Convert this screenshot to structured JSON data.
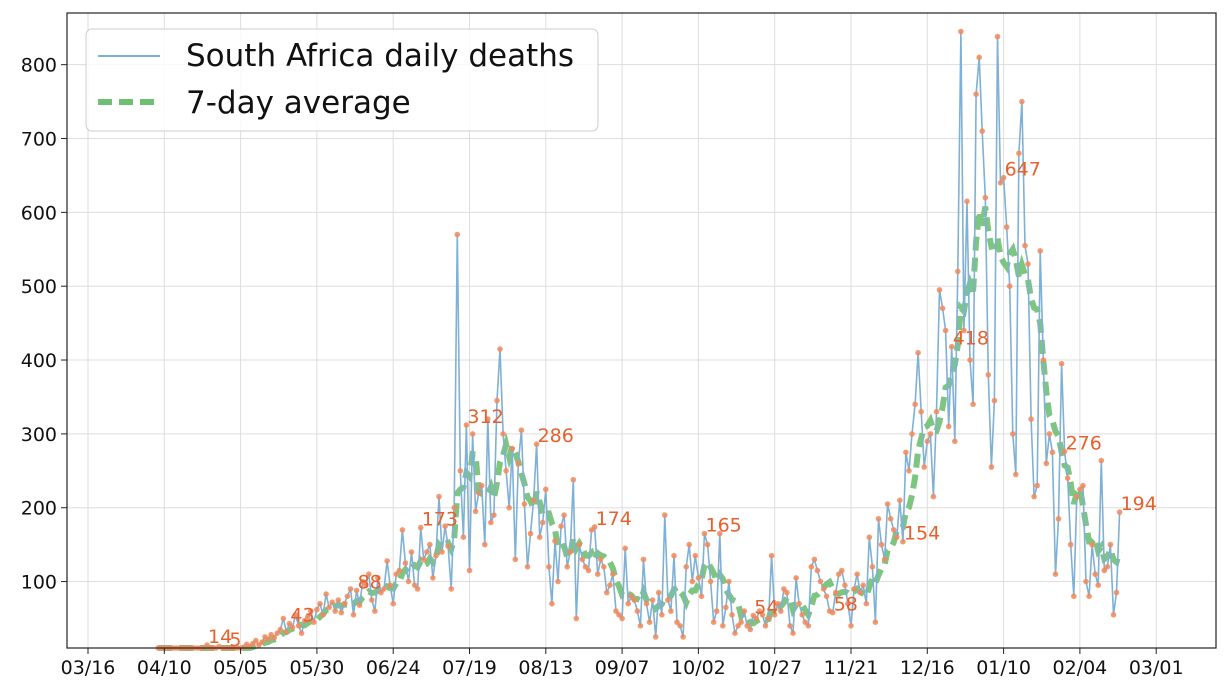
{
  "chart_data": {
    "type": "line",
    "title": "",
    "xlabel": "",
    "ylabel": "",
    "x_start": "03/16",
    "x_ticks": [
      "03/16",
      "04/10",
      "05/05",
      "05/30",
      "06/24",
      "07/19",
      "08/13",
      "09/07",
      "10/02",
      "10/27",
      "11/21",
      "12/16",
      "01/10",
      "02/04",
      "03/01"
    ],
    "y_ticks": [
      100,
      200,
      300,
      400,
      500,
      600,
      700,
      800
    ],
    "ylim": [
      10,
      870
    ],
    "grid": true,
    "legend_position": "top-left",
    "colors": {
      "daily_line": "#7fb0d5",
      "daily_marker": "#f08a5d",
      "average": "#6fbf73",
      "label": "#e8602c"
    },
    "series": [
      {
        "name": "South Africa daily deaths",
        "style": "line",
        "daily": [
          2,
          1,
          0,
          2,
          1,
          2,
          3,
          1,
          2,
          5,
          4,
          3,
          6,
          5,
          8,
          7,
          14,
          10,
          6,
          8,
          12,
          9,
          10,
          5,
          7,
          9,
          6,
          10,
          11,
          15,
          12,
          16,
          20,
          14,
          18,
          25,
          22,
          28,
          24,
          30,
          35,
          50,
          32,
          43,
          38,
          55,
          40,
          30,
          47,
          52,
          60,
          45,
          62,
          70,
          55,
          83,
          65,
          72,
          60,
          75,
          58,
          70,
          80,
          90,
          55,
          88,
          68,
          100,
          95,
          110,
          75,
          60,
          105,
          85,
          90,
          128,
          95,
          70,
          110,
          115,
          170,
          125,
          100,
          140,
          95,
          90,
          173,
          130,
          140,
          150,
          105,
          135,
          215,
          140,
          175,
          148,
          90,
          200,
          570,
          250,
          160,
          312,
          115,
          300,
          195,
          220,
          230,
          150,
          320,
          180,
          190,
          345,
          415,
          300,
          250,
          200,
          280,
          130,
          260,
          305,
          205,
          120,
          165,
          210,
          286,
          160,
          180,
          225,
          120,
          70,
          155,
          100,
          175,
          190,
          120,
          140,
          238,
          50,
          150,
          130,
          120,
          115,
          170,
          174,
          110,
          130,
          120,
          85,
          95,
          110,
          60,
          55,
          50,
          145,
          70,
          80,
          75,
          60,
          40,
          130,
          70,
          45,
          75,
          25,
          85,
          55,
          190,
          75,
          60,
          135,
          45,
          40,
          25,
          120,
          150,
          100,
          135,
          105,
          80,
          165,
          150,
          100,
          45,
          60,
          165,
          40,
          65,
          100,
          55,
          30,
          40,
          45,
          60,
          40,
          35,
          54,
          50,
          60,
          55,
          40,
          50,
          135,
          55,
          70,
          60,
          90,
          85,
          40,
          30,
          105,
          70,
          55,
          45,
          40,
          120,
          130,
          115,
          100,
          90,
          80,
          60,
          58,
          85,
          110,
          115,
          95,
          70,
          40,
          90,
          110,
          85,
          95,
          70,
          160,
          120,
          45,
          185,
          150,
          130,
          205,
          185,
          170,
          160,
          210,
          154,
          275,
          250,
          300,
          340,
          410,
          330,
          255,
          290,
          300,
          215,
          330,
          495,
          470,
          440,
          310,
          418,
          290,
          520,
          845,
          440,
          615,
          400,
          340,
          760,
          810,
          710,
          620,
          380,
          255,
          345,
          838,
          640,
          647,
          580,
          500,
          300,
          245,
          680,
          750,
          555,
          530,
          320,
          215,
          230,
          548,
          400,
          260,
          300,
          275,
          110,
          185,
          395,
          276,
          240,
          150,
          80,
          215,
          225,
          230,
          100,
          80,
          150,
          110,
          95,
          264,
          115,
          120,
          150,
          55,
          85,
          194
        ]
      },
      {
        "name": "7-day average",
        "style": "dashed",
        "average_label": "7-day average"
      }
    ],
    "annotations": [
      "14",
      "5",
      "43",
      "88",
      "173",
      "312",
      "286",
      "174",
      "88",
      "165",
      "54",
      "58",
      "154",
      "418",
      "647",
      "276",
      "194"
    ]
  },
  "legend": {
    "entries": [
      "South Africa daily deaths",
      "7-day average"
    ]
  }
}
